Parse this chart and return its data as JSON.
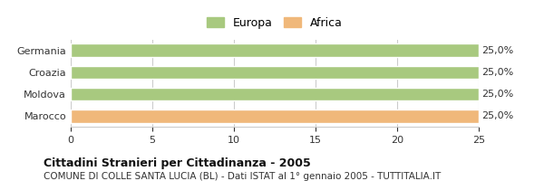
{
  "categories": [
    "Germania",
    "Croazia",
    "Moldova",
    "Marocco"
  ],
  "values": [
    25,
    25,
    25,
    25
  ],
  "bar_colors": [
    "#a8c97f",
    "#a8c97f",
    "#a8c97f",
    "#f0b87a"
  ],
  "value_labels": [
    "25,0%",
    "25,0%",
    "25,0%",
    "25,0%"
  ],
  "xlim": [
    0,
    25
  ],
  "xticks": [
    0,
    5,
    10,
    15,
    20,
    25
  ],
  "legend_europa_color": "#a8c97f",
  "legend_africa_color": "#f0b87a",
  "legend_europa_label": "Europa",
  "legend_africa_label": "Africa",
  "title": "Cittadini Stranieri per Cittadinanza - 2005",
  "subtitle": "COMUNE DI COLLE SANTA LUCIA (BL) - Dati ISTAT al 1° gennaio 2005 - TUTTITALIA.IT",
  "background_color": "#ffffff",
  "bar_edge_color": "#ffffff",
  "grid_color": "#cccccc"
}
